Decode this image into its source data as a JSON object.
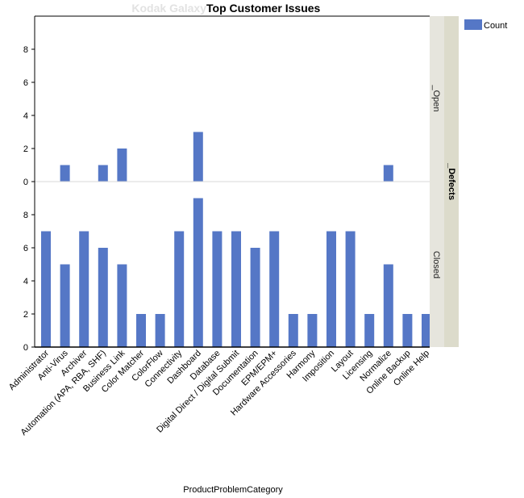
{
  "chart_data": {
    "type": "bar",
    "title_faded": "Kodak Galaxy",
    "title": "Top Customer Issues",
    "xlabel": "ProductProblemCategory",
    "ylabel": "",
    "ylim": [
      0,
      10
    ],
    "yticks": [
      0,
      2,
      4,
      6,
      8
    ],
    "grid": false,
    "bar_color": "#5577c6",
    "legend": {
      "position": "top-right",
      "entries": [
        "Count"
      ]
    },
    "facet_group_label": "_Defects",
    "categories": [
      "Administrator",
      "Anti-Virus",
      "Archiver",
      "Automation (APA, RBA, SHF)",
      "Business Link",
      "Color Matcher",
      "ColorFlow",
      "Connectivity",
      "Dashboard",
      "Database",
      "Digital Direct / Digital Submit",
      "Documentation",
      "EPM/EPM+",
      "Hardware Accessories",
      "Harmony",
      "Imposition",
      "Layout",
      "Licensing",
      "Normalize",
      "Online Backup",
      "Online Help"
    ],
    "panels": [
      {
        "label": "_Open",
        "series": [
          {
            "name": "Count",
            "values": [
              0,
              1,
              0,
              1,
              2,
              0,
              0,
              0,
              3,
              0,
              0,
              0,
              0,
              0,
              0,
              0,
              0,
              0,
              1,
              0,
              0
            ]
          }
        ]
      },
      {
        "label": "Closed",
        "series": [
          {
            "name": "Count",
            "values": [
              7,
              5,
              7,
              6,
              5,
              2,
              2,
              7,
              9,
              7,
              7,
              6,
              7,
              2,
              2,
              7,
              7,
              2,
              5,
              2,
              2
            ]
          }
        ]
      }
    ]
  }
}
